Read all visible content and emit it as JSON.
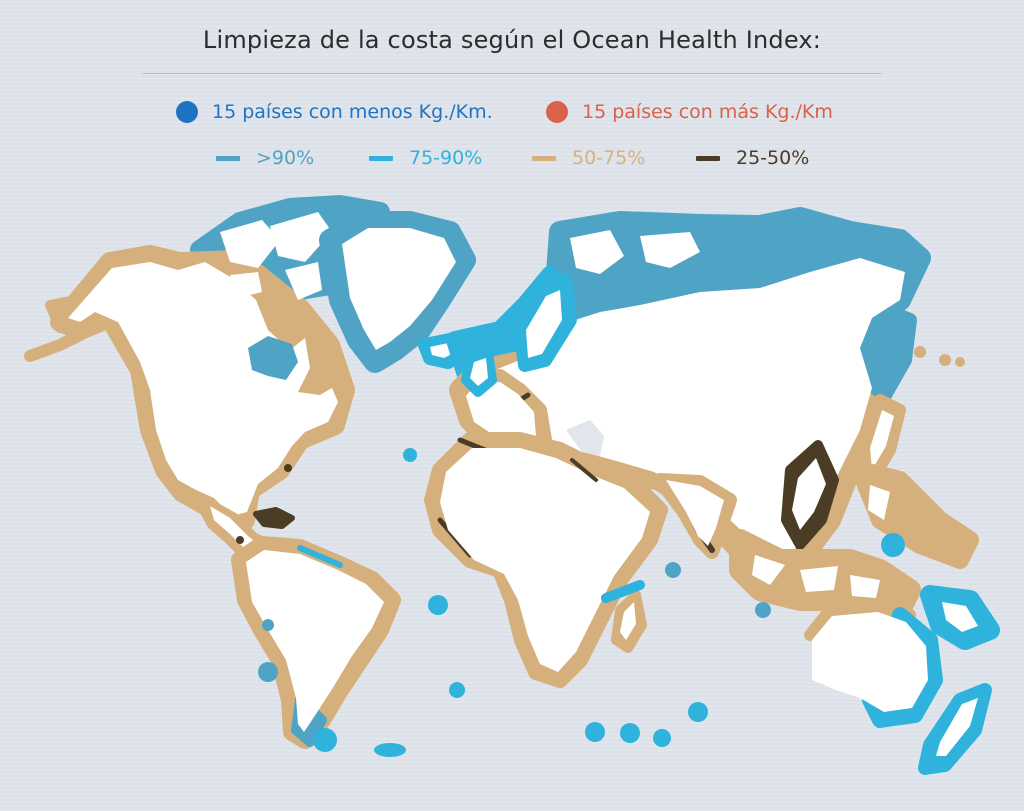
{
  "title": "Limpieza de la costa según el Ocean Health Index:",
  "legend": {
    "dots": [
      {
        "label": "15 países con menos Kg./Km.",
        "color": "#1f73c3"
      },
      {
        "label": "15 países con más Kg./Km",
        "color": "#d9624a"
      }
    ],
    "ranges": [
      {
        "label": ">90%",
        "color": "#4fa3c4"
      },
      {
        "label": "75-90%",
        "color": "#2fb2dc"
      },
      {
        "label": "50-75%",
        "color": "#d6b07c"
      },
      {
        "label": "25-50%",
        "color": "#4b3d25"
      }
    ]
  },
  "colors": {
    "land": "#ffffff",
    "inland_water": "#e3e5ec"
  }
}
